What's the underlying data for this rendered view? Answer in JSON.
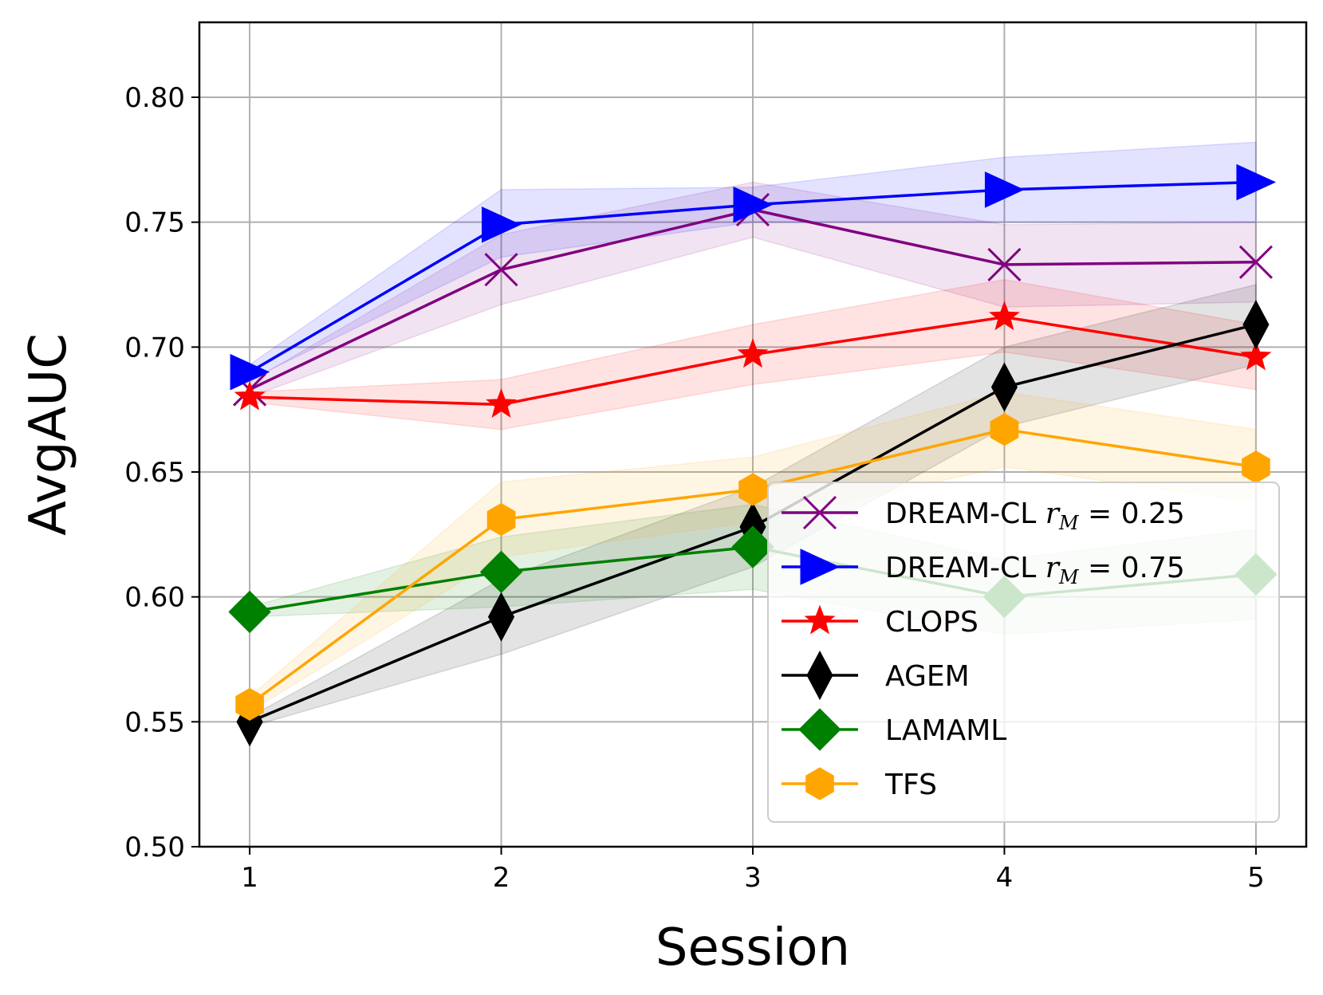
{
  "chart_data": {
    "type": "line",
    "title": "",
    "xlabel": "Session",
    "ylabel": "AvgAUC",
    "x": [
      1,
      2,
      3,
      4,
      5
    ],
    "xlim": [
      0.8,
      5.2
    ],
    "ylim": [
      0.5,
      0.83
    ],
    "yticks": [
      0.5,
      0.55,
      0.6,
      0.65,
      0.7,
      0.75,
      0.8
    ],
    "ytick_labels": [
      "0.50",
      "0.55",
      "0.60",
      "0.65",
      "0.70",
      "0.75",
      "0.80"
    ],
    "xtick_labels": [
      "1",
      "2",
      "3",
      "4",
      "5"
    ],
    "grid": true,
    "legend_position": "lower-right",
    "series": [
      {
        "name": "DREAM-CL r_M = 0.25",
        "legend_prefix": "DREAM-CL ",
        "legend_r": "r",
        "legend_sub": "M",
        "legend_suffix": " = 0.25",
        "color": "#800080",
        "marker": "x",
        "values": [
          0.683,
          0.731,
          0.755,
          0.733,
          0.734
        ],
        "lower": [
          0.68,
          0.717,
          0.744,
          0.716,
          0.718
        ],
        "upper": [
          0.686,
          0.745,
          0.766,
          0.749,
          0.75
        ]
      },
      {
        "name": "DREAM-CL r_M = 0.75",
        "legend_prefix": "DREAM-CL ",
        "legend_r": "r",
        "legend_sub": "M",
        "legend_suffix": " = 0.75",
        "color": "#0000ff",
        "marker": "triangle-right",
        "values": [
          0.69,
          0.749,
          0.757,
          0.763,
          0.766
        ],
        "lower": [
          0.687,
          0.736,
          0.75,
          0.75,
          0.75
        ],
        "upper": [
          0.693,
          0.763,
          0.764,
          0.776,
          0.782
        ]
      },
      {
        "name": "CLOPS",
        "color": "#ff0000",
        "marker": "star",
        "values": [
          0.68,
          0.677,
          0.697,
          0.712,
          0.696
        ],
        "lower": [
          0.678,
          0.667,
          0.685,
          0.698,
          0.683
        ],
        "upper": [
          0.682,
          0.687,
          0.709,
          0.727,
          0.709
        ]
      },
      {
        "name": "AGEM",
        "color": "#000000",
        "marker": "thin-diamond",
        "values": [
          0.55,
          0.592,
          0.628,
          0.684,
          0.709
        ],
        "lower": [
          0.548,
          0.577,
          0.612,
          0.668,
          0.693
        ],
        "upper": [
          0.552,
          0.607,
          0.644,
          0.7,
          0.725
        ]
      },
      {
        "name": "LAMAML",
        "color": "#008000",
        "marker": "diamond",
        "values": [
          0.594,
          0.61,
          0.62,
          0.6,
          0.609
        ],
        "lower": [
          0.592,
          0.596,
          0.603,
          0.585,
          0.591
        ],
        "upper": [
          0.596,
          0.624,
          0.637,
          0.615,
          0.627
        ]
      },
      {
        "name": "TFS",
        "color": "#ffa500",
        "marker": "hexagon",
        "values": [
          0.557,
          0.631,
          0.643,
          0.667,
          0.652
        ],
        "lower": [
          0.554,
          0.616,
          0.63,
          0.652,
          0.638
        ],
        "upper": [
          0.56,
          0.646,
          0.656,
          0.682,
          0.667
        ]
      }
    ]
  }
}
